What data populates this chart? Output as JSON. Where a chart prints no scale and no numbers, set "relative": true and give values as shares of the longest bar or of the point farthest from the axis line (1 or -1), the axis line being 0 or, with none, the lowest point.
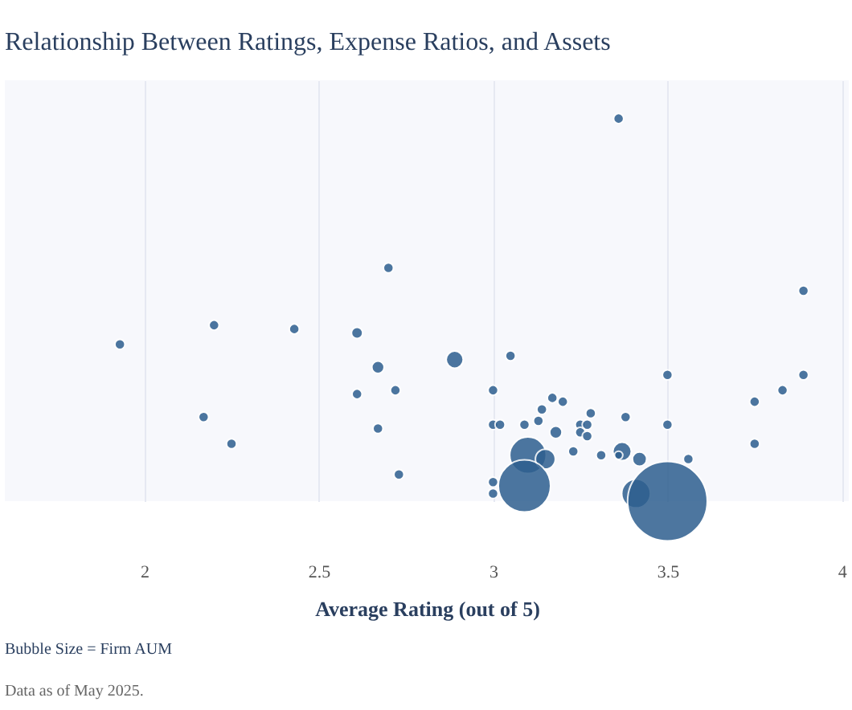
{
  "chart_data": {
    "type": "bubble",
    "title": "Relationship Between Ratings, Expense Ratios, and Assets",
    "xlabel": "Average Rating (out of 5)",
    "annotations": [
      "Bubble Size = Firm AUM",
      "Data as of May 2025."
    ],
    "relative": true,
    "xlim": [
      1.6,
      4.02
    ],
    "xticks": [
      2,
      2.5,
      3,
      3.5,
      4
    ],
    "grid": "x",
    "x": [
      1.93,
      2.2,
      2.43,
      2.61,
      2.7,
      2.67,
      2.72,
      2.61,
      2.17,
      2.67,
      2.25,
      2.73,
      3.36,
      3.89,
      2.89,
      3.05,
      3.5,
      3.89,
      3.0,
      3.83,
      3.75,
      3.17,
      3.2,
      3.14,
      3.13,
      3.28,
      3.0,
      3.02,
      3.09,
      3.25,
      3.27,
      3.38,
      3.5,
      3.25,
      3.27,
      3.18,
      3.75,
      3.1,
      3.23,
      3.31,
      3.37,
      3.36,
      3.42,
      3.56,
      3.15,
      3.0,
      3.0,
      3.09,
      3.41,
      3.5
    ],
    "series": [
      {
        "color": "#2e5f8f",
        "values": [
          0.41,
          0.46,
          0.45,
          0.44,
          0.61,
          0.35,
          0.29,
          0.28,
          0.22,
          0.19,
          0.15,
          0.07,
          1.0,
          0.55,
          0.37,
          0.38,
          0.33,
          0.33,
          0.29,
          0.29,
          0.26,
          0.27,
          0.26,
          0.24,
          0.21,
          0.23,
          0.2,
          0.2,
          0.2,
          0.2,
          0.2,
          0.22,
          0.2,
          0.18,
          0.17,
          0.18,
          0.15,
          0.12,
          0.13,
          0.12,
          0.13,
          0.12,
          0.11,
          0.11,
          0.11,
          0.05,
          0.02,
          0.04,
          0.02,
          0.0
        ],
        "sizes": [
          0.016,
          0.016,
          0.016,
          0.02,
          0.016,
          0.024,
          0.016,
          0.016,
          0.016,
          0.016,
          0.016,
          0.016,
          0.016,
          0.016,
          0.046,
          0.016,
          0.016,
          0.016,
          0.016,
          0.016,
          0.016,
          0.016,
          0.016,
          0.016,
          0.016,
          0.016,
          0.016,
          0.016,
          0.016,
          0.016,
          0.016,
          0.016,
          0.016,
          0.016,
          0.016,
          0.024,
          0.016,
          0.21,
          0.016,
          0.016,
          0.054,
          0.011,
          0.032,
          0.016,
          0.0625,
          0.016,
          0.016,
          0.43,
          0.13,
          1.0
        ]
      }
    ]
  }
}
